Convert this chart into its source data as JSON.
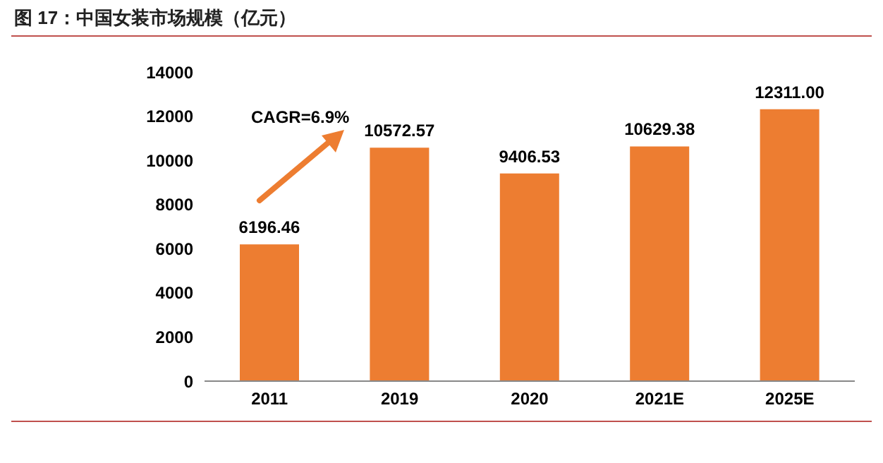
{
  "chart_data": {
    "type": "bar",
    "title": "图 17：中国女装市场规模（亿元）",
    "categories": [
      "2011",
      "2019",
      "2020",
      "2021E",
      "2025E"
    ],
    "values": [
      6196.46,
      10572.57,
      9406.53,
      10629.38,
      12311.0
    ],
    "value_labels": [
      "6196.46",
      "10572.57",
      "9406.53",
      "10629.38",
      "12311.00"
    ],
    "color": "#ed7d31",
    "ylim": [
      0,
      14000
    ],
    "yticks": [
      0,
      2000,
      4000,
      6000,
      8000,
      10000,
      12000,
      14000
    ],
    "grid": false,
    "annotations": [
      "CAGR=6.9%"
    ]
  }
}
